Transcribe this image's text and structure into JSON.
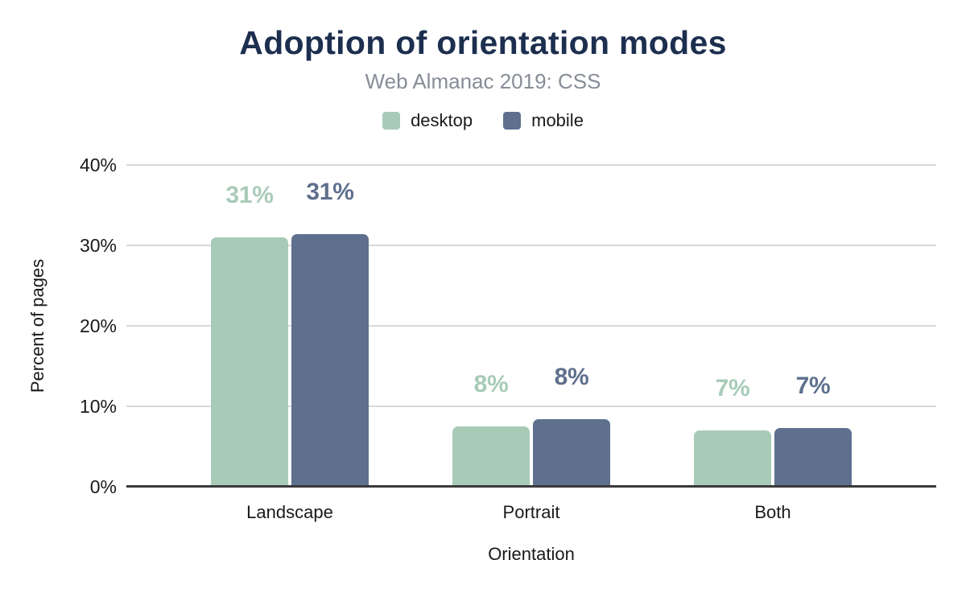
{
  "title": "Adoption of orientation modes",
  "subtitle": "Web Almanac 2019: CSS",
  "legend": [
    {
      "label": "desktop",
      "color": "#a8cbb8"
    },
    {
      "label": "mobile",
      "color": "#5f708e"
    }
  ],
  "axes": {
    "x_title": "Orientation",
    "y_title": "Percent of pages"
  },
  "colors": {
    "title": "#1d2f4f",
    "subtitle": "#878d97",
    "desktop": "#a8cbb8",
    "mobile": "#5f708e",
    "gridline": "#d9d9d9",
    "baseline": "#3a3a3a",
    "axis_text": "#1a1a1a"
  },
  "chart_data": {
    "type": "bar",
    "title": "Adoption of orientation modes",
    "subtitle": "Web Almanac 2019: CSS",
    "categories": [
      "Landscape",
      "Portrait",
      "Both"
    ],
    "series": [
      {
        "name": "desktop",
        "color": "#a8cbb8",
        "values": [
          31.0,
          7.5,
          7.0
        ],
        "labels": [
          "31%",
          "8%",
          "7%"
        ]
      },
      {
        "name": "mobile",
        "color": "#5f708e",
        "values": [
          31.4,
          8.4,
          7.3
        ],
        "labels": [
          "31%",
          "8%",
          "7%"
        ]
      }
    ],
    "xlabel": "Orientation",
    "ylabel": "Percent of pages",
    "yticks": [
      {
        "value": 0,
        "label": "0%"
      },
      {
        "value": 10,
        "label": "10%"
      },
      {
        "value": 20,
        "label": "20%"
      },
      {
        "value": 30,
        "label": "30%"
      },
      {
        "value": 40,
        "label": "40%"
      }
    ],
    "ylim": [
      0,
      40
    ],
    "grid": true,
    "legend_position": "top"
  }
}
